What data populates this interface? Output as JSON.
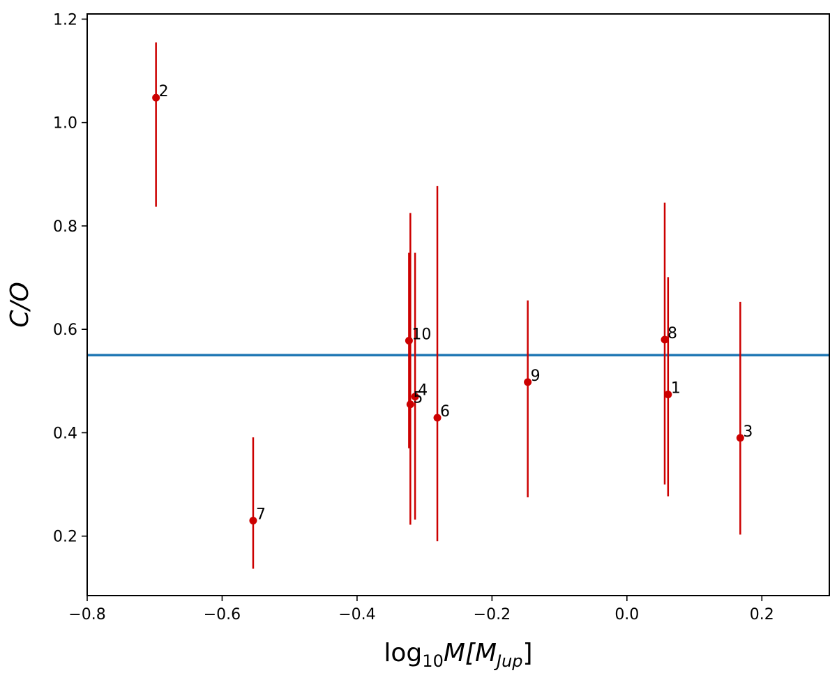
{
  "chart_data": {
    "type": "scatter",
    "title": "",
    "xlabel": {
      "base": "log",
      "sub": "10",
      "mid": "M[M",
      "msub": "Jup",
      "end": "]"
    },
    "ylabel": "C/O",
    "xlim": [
      -0.8,
      0.3
    ],
    "ylim": [
      0.085,
      1.21
    ],
    "xticks": [
      -0.8,
      -0.6,
      -0.4,
      -0.2,
      0.0,
      0.2
    ],
    "xtick_labels": [
      "−0.8",
      "−0.6",
      "−0.4",
      "−0.2",
      "0.0",
      "0.2"
    ],
    "yticks": [
      0.2,
      0.4,
      0.6,
      0.8,
      1.0,
      1.2
    ],
    "ytick_labels": [
      "0.2",
      "0.4",
      "0.6",
      "0.8",
      "1.0",
      "1.2"
    ],
    "grid": false,
    "reference_line": {
      "y": 0.55,
      "color": "#1f77b4"
    },
    "series_color": "#cc0000",
    "points": [
      {
        "label": "1",
        "x": 0.061,
        "y": 0.474,
        "ylo": 0.277,
        "yhi": 0.701
      },
      {
        "label": "2",
        "x": -0.698,
        "y": 1.048,
        "ylo": 0.837,
        "yhi": 1.155
      },
      {
        "label": "3",
        "x": 0.168,
        "y": 0.39,
        "ylo": 0.203,
        "yhi": 0.653
      },
      {
        "label": "4",
        "x": -0.314,
        "y": 0.47,
        "ylo": 0.232,
        "yhi": 0.748
      },
      {
        "label": "5",
        "x": -0.321,
        "y": 0.455,
        "ylo": 0.222,
        "yhi": 0.825
      },
      {
        "label": "6",
        "x": -0.281,
        "y": 0.429,
        "ylo": 0.19,
        "yhi": 0.877
      },
      {
        "label": "7",
        "x": -0.554,
        "y": 0.23,
        "ylo": 0.137,
        "yhi": 0.391
      },
      {
        "label": "8",
        "x": 0.056,
        "y": 0.58,
        "ylo": 0.3,
        "yhi": 0.845
      },
      {
        "label": "9",
        "x": -0.147,
        "y": 0.498,
        "ylo": 0.275,
        "yhi": 0.656
      },
      {
        "label": "10",
        "x": -0.323,
        "y": 0.578,
        "ylo": 0.37,
        "yhi": 0.748
      }
    ]
  }
}
